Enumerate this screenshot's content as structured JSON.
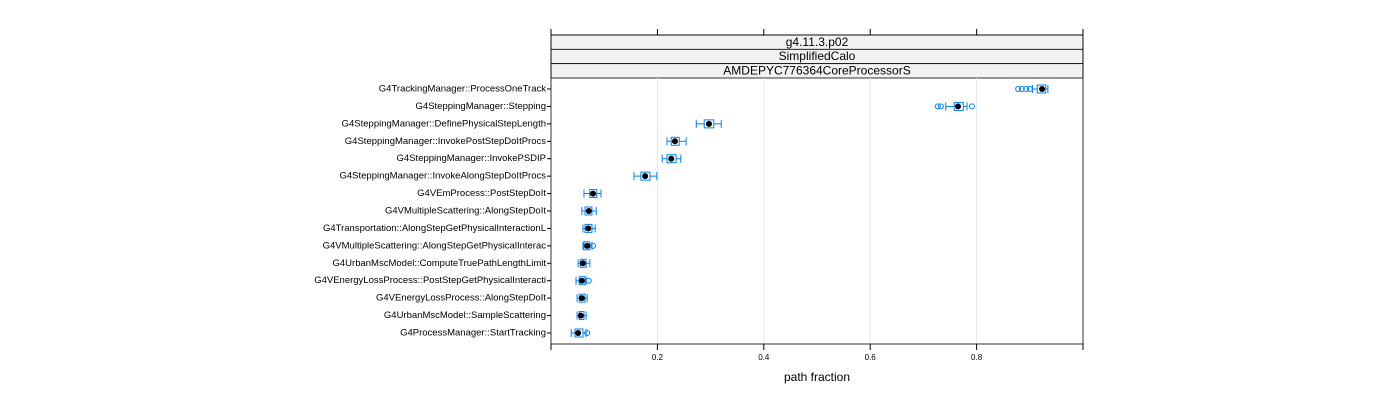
{
  "chart_data": {
    "type": "box",
    "strips": [
      "g4.11.3.p02",
      "SimplifiedCalo",
      "AMDEPYC776364CoreProcessorS"
    ],
    "xlabel": "path fraction",
    "categories": [
      "G4TrackingManager::ProcessOneTrack",
      "G4SteppingManager::Stepping",
      "G4SteppingManager::DefinePhysicalStepLength",
      "G4SteppingManager::InvokePostStepDoItProcs",
      "G4SteppingManager::InvokePSDIP",
      "G4SteppingManager::InvokeAlongStepDoItProcs",
      "G4VEmProcess::PostStepDoIt",
      "G4VMultipleScattering::AlongStepDoIt",
      "G4Transportation::AlongStepGetPhysicalInteractionL",
      "G4VMultipleScattering::AlongStepGetPhysicalInterac",
      "G4UrbanMscModel::ComputeTruePathLengthLimit",
      "G4VEnergyLossProcess::PostStepGetPhysicalInteracti",
      "G4VEnergyLossProcess::AlongStepDoIt",
      "G4UrbanMscModel::SampleScattering",
      "G4ProcessManager::StartTracking"
    ],
    "whisker_low": [
      0.905,
      0.742,
      0.273,
      0.218,
      0.209,
      0.156,
      0.062,
      0.058,
      0.06,
      0.06,
      0.051,
      0.047,
      0.049,
      0.049,
      0.038
    ],
    "q1": [
      0.914,
      0.758,
      0.288,
      0.226,
      0.218,
      0.169,
      0.073,
      0.064,
      0.064,
      0.062,
      0.055,
      0.053,
      0.053,
      0.053,
      0.045
    ],
    "median": [
      0.923,
      0.765,
      0.297,
      0.233,
      0.226,
      0.177,
      0.079,
      0.071,
      0.07,
      0.068,
      0.06,
      0.058,
      0.058,
      0.056,
      0.051
    ],
    "q3": [
      0.93,
      0.775,
      0.306,
      0.241,
      0.235,
      0.186,
      0.086,
      0.077,
      0.077,
      0.073,
      0.066,
      0.064,
      0.064,
      0.062,
      0.06
    ],
    "whisker_high": [
      0.934,
      0.782,
      0.32,
      0.254,
      0.244,
      0.199,
      0.094,
      0.085,
      0.083,
      0.077,
      0.073,
      0.066,
      0.068,
      0.066,
      0.066
    ],
    "outliers": [
      [
        0.878,
        0.885,
        0.893,
        0.9
      ],
      [
        0.727,
        0.733,
        0.791
      ],
      [],
      [],
      [],
      [],
      [],
      [],
      [],
      [
        0.079
      ],
      [],
      [
        0.071
      ],
      [],
      [],
      [
        0.068
      ]
    ],
    "color": "#0080ff",
    "xlim": [
      0,
      1.0
    ],
    "xticks": [
      0.2,
      0.4,
      0.6,
      0.8
    ],
    "grid": true
  }
}
